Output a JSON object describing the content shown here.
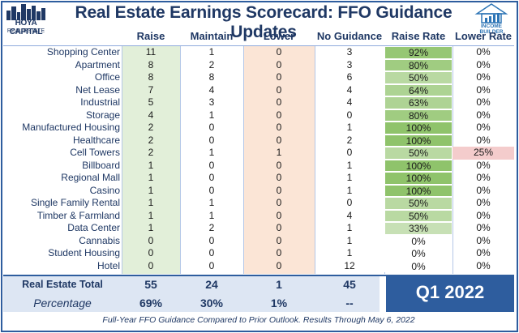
{
  "header": {
    "title": "Real Estate Earnings Scorecard: FFO Guidance Updates",
    "logo_left_line1": "HOYA CAPITAL",
    "logo_left_line2": "REAL ESTATE",
    "logo_right_text": "INCOME BUILDER"
  },
  "chart_data": {
    "type": "table",
    "columns": [
      "Raise",
      "Maintain",
      "Lower",
      "No Guidance",
      "Raise Rate",
      "Lower Rate"
    ],
    "rows": [
      {
        "label": "Shopping Center",
        "raise": 11,
        "maintain": 1,
        "lower": 0,
        "no_guidance": 3,
        "raise_rate": "92%",
        "lower_rate": "0%"
      },
      {
        "label": "Apartment",
        "raise": 8,
        "maintain": 2,
        "lower": 0,
        "no_guidance": 3,
        "raise_rate": "80%",
        "lower_rate": "0%"
      },
      {
        "label": "Office",
        "raise": 8,
        "maintain": 8,
        "lower": 0,
        "no_guidance": 6,
        "raise_rate": "50%",
        "lower_rate": "0%"
      },
      {
        "label": "Net Lease",
        "raise": 7,
        "maintain": 4,
        "lower": 0,
        "no_guidance": 4,
        "raise_rate": "64%",
        "lower_rate": "0%"
      },
      {
        "label": "Industrial",
        "raise": 5,
        "maintain": 3,
        "lower": 0,
        "no_guidance": 4,
        "raise_rate": "63%",
        "lower_rate": "0%"
      },
      {
        "label": "Storage",
        "raise": 4,
        "maintain": 1,
        "lower": 0,
        "no_guidance": 0,
        "raise_rate": "80%",
        "lower_rate": "0%"
      },
      {
        "label": "Manufactured Housing",
        "raise": 2,
        "maintain": 0,
        "lower": 0,
        "no_guidance": 1,
        "raise_rate": "100%",
        "lower_rate": "0%"
      },
      {
        "label": "Healthcare",
        "raise": 2,
        "maintain": 0,
        "lower": 0,
        "no_guidance": 2,
        "raise_rate": "100%",
        "lower_rate": "0%"
      },
      {
        "label": "Cell Towers",
        "raise": 2,
        "maintain": 1,
        "lower": 1,
        "no_guidance": 0,
        "raise_rate": "50%",
        "lower_rate": "25%"
      },
      {
        "label": "Billboard",
        "raise": 1,
        "maintain": 0,
        "lower": 0,
        "no_guidance": 1,
        "raise_rate": "100%",
        "lower_rate": "0%"
      },
      {
        "label": "Regional Mall",
        "raise": 1,
        "maintain": 0,
        "lower": 0,
        "no_guidance": 1,
        "raise_rate": "100%",
        "lower_rate": "0%"
      },
      {
        "label": "Casino",
        "raise": 1,
        "maintain": 0,
        "lower": 0,
        "no_guidance": 1,
        "raise_rate": "100%",
        "lower_rate": "0%"
      },
      {
        "label": "Single Family Rental",
        "raise": 1,
        "maintain": 1,
        "lower": 0,
        "no_guidance": 0,
        "raise_rate": "50%",
        "lower_rate": "0%"
      },
      {
        "label": "Timber & Farmland",
        "raise": 1,
        "maintain": 1,
        "lower": 0,
        "no_guidance": 4,
        "raise_rate": "50%",
        "lower_rate": "0%"
      },
      {
        "label": "Data Center",
        "raise": 1,
        "maintain": 2,
        "lower": 0,
        "no_guidance": 1,
        "raise_rate": "33%",
        "lower_rate": "0%"
      },
      {
        "label": "Cannabis",
        "raise": 0,
        "maintain": 0,
        "lower": 0,
        "no_guidance": 1,
        "raise_rate": "0%",
        "lower_rate": "0%"
      },
      {
        "label": "Student Housing",
        "raise": 0,
        "maintain": 0,
        "lower": 0,
        "no_guidance": 1,
        "raise_rate": "0%",
        "lower_rate": "0%"
      },
      {
        "label": "Hotel",
        "raise": 0,
        "maintain": 0,
        "lower": 0,
        "no_guidance": 12,
        "raise_rate": "0%",
        "lower_rate": "0%"
      }
    ],
    "total": {
      "label": "Real Estate Total",
      "raise": "55",
      "maintain": "24",
      "lower": "1",
      "no_guidance": "45"
    },
    "percentage": {
      "label": "Percentage",
      "raise": "69%",
      "maintain": "30%",
      "lower": "1%",
      "no_guidance": "--"
    },
    "period": "Q1 2022",
    "colors": {
      "raise": "#e2efd9",
      "lower": "#fbe5d6",
      "title": "#1f3864",
      "accent": "#2e5d9e",
      "raise_rate_high": "#8fc36b",
      "lower_rate_flag": "#f4cccc"
    }
  },
  "footer": "Full-Year FFO Guidance Compared to Prior Outlook. Results Through May 6, 2022"
}
